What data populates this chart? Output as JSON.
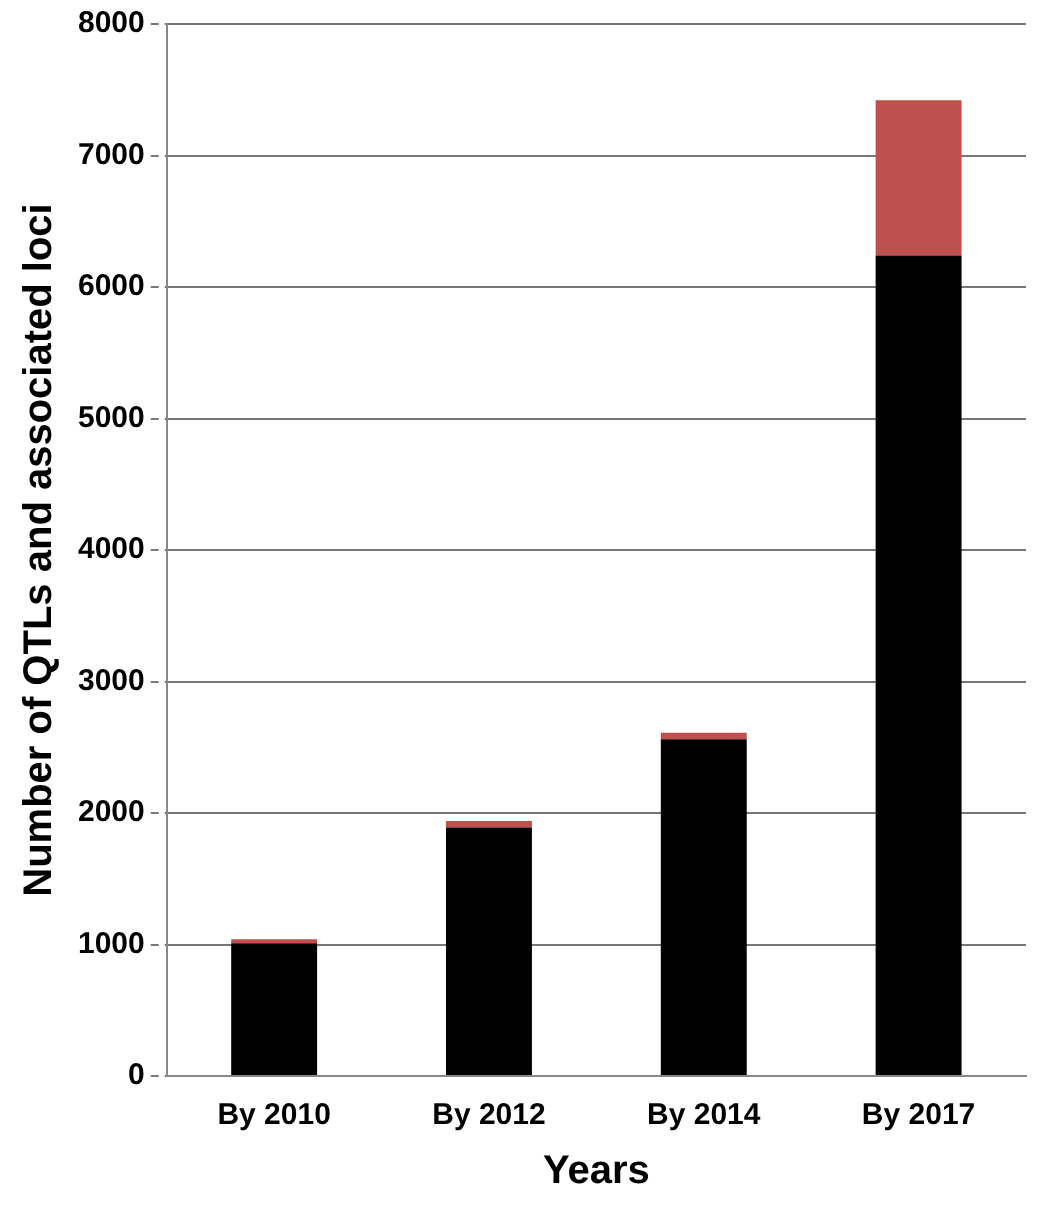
{
  "chart_data": {
    "type": "bar",
    "stacked": true,
    "xlabel": "Years",
    "ylabel": "Number of QTLs and associated loci",
    "categories": [
      "By 2010",
      "By 2012",
      "By 2014",
      "By 2017"
    ],
    "series": [
      {
        "color": "#000000",
        "values": [
          1010,
          1890,
          2560,
          6240
        ]
      },
      {
        "color": "#c0504d",
        "values": [
          30,
          50,
          50,
          1180
        ]
      }
    ],
    "ylim": [
      0,
      8000
    ],
    "yticks": [
      0,
      1000,
      2000,
      3000,
      4000,
      5000,
      6000,
      7000,
      8000
    ],
    "grid": "y",
    "line_style": "dashed",
    "legend": false
  }
}
